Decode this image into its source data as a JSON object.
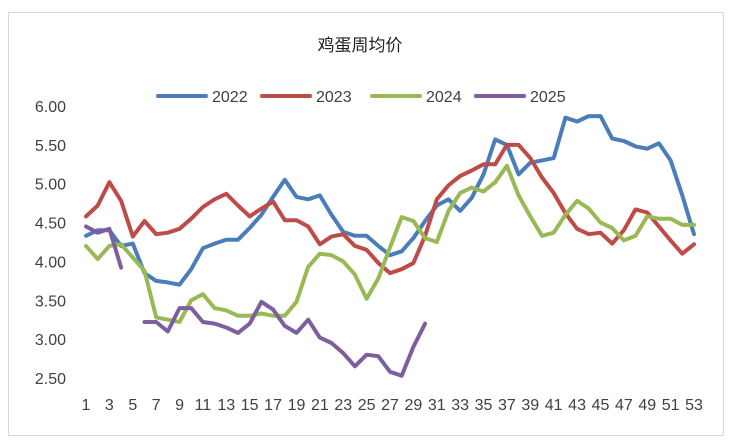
{
  "chart_data": {
    "type": "line",
    "title": "鸡蛋周均价",
    "xlabel": "",
    "ylabel": "",
    "ylim": [
      2.5,
      6.0
    ],
    "yticks": [
      "2.50",
      "3.00",
      "3.50",
      "4.00",
      "4.50",
      "5.00",
      "5.50",
      "6.00"
    ],
    "xlim": [
      1,
      53
    ],
    "xticks": [
      "1",
      "3",
      "5",
      "7",
      "9",
      "11",
      "13",
      "15",
      "17",
      "19",
      "21",
      "23",
      "25",
      "27",
      "29",
      "31",
      "33",
      "35",
      "37",
      "39",
      "41",
      "43",
      "45",
      "47",
      "49",
      "51",
      "53"
    ],
    "grid": false,
    "legend_position": "top",
    "series": [
      {
        "name": "2022",
        "color": "#4a7ebb",
        "x": [
          1,
          2,
          3,
          4,
          5,
          6,
          7,
          8,
          9,
          10,
          11,
          12,
          13,
          14,
          15,
          16,
          17,
          18,
          19,
          20,
          21,
          22,
          23,
          24,
          25,
          26,
          27,
          28,
          29,
          30,
          31,
          32,
          33,
          34,
          35,
          36,
          37,
          38,
          39,
          40,
          41,
          42,
          43,
          44,
          45,
          46,
          47,
          48,
          49,
          50,
          51,
          52,
          53
        ],
        "values": [
          4.33,
          4.4,
          4.4,
          4.2,
          4.23,
          3.85,
          3.75,
          3.73,
          3.7,
          3.9,
          4.17,
          4.23,
          4.28,
          4.28,
          4.43,
          4.6,
          4.83,
          5.05,
          4.83,
          4.8,
          4.85,
          4.6,
          4.38,
          4.33,
          4.33,
          4.2,
          4.08,
          4.13,
          4.3,
          4.52,
          4.72,
          4.8,
          4.65,
          4.82,
          5.12,
          5.57,
          5.5,
          5.12,
          5.27,
          5.3,
          5.33,
          5.85,
          5.8,
          5.87,
          5.87,
          5.58,
          5.55,
          5.48,
          5.45,
          5.52,
          5.3,
          4.85,
          4.35
        ]
      },
      {
        "name": "2023",
        "color": "#be4b48",
        "x": [
          1,
          2,
          3,
          4,
          5,
          6,
          7,
          8,
          9,
          10,
          11,
          12,
          13,
          14,
          15,
          16,
          17,
          18,
          19,
          20,
          21,
          22,
          23,
          24,
          25,
          26,
          27,
          28,
          29,
          30,
          31,
          32,
          33,
          34,
          35,
          36,
          37,
          38,
          39,
          40,
          41,
          42,
          43,
          44,
          45,
          46,
          47,
          48,
          49,
          50,
          51,
          52,
          53
        ],
        "values": [
          4.58,
          4.72,
          5.02,
          4.78,
          4.32,
          4.52,
          4.35,
          4.37,
          4.42,
          4.55,
          4.7,
          4.8,
          4.87,
          4.72,
          4.58,
          4.68,
          4.77,
          4.53,
          4.53,
          4.45,
          4.22,
          4.32,
          4.35,
          4.2,
          4.15,
          3.98,
          3.85,
          3.9,
          3.98,
          4.33,
          4.8,
          4.98,
          5.1,
          5.17,
          5.25,
          5.25,
          5.5,
          5.5,
          5.33,
          5.08,
          4.88,
          4.62,
          4.42,
          4.35,
          4.37,
          4.23,
          4.4,
          4.67,
          4.63,
          4.45,
          4.27,
          4.1,
          4.22
        ]
      },
      {
        "name": "2024",
        "color": "#98b954",
        "x": [
          1,
          2,
          3,
          4,
          5,
          6,
          7,
          8,
          9,
          10,
          11,
          12,
          13,
          14,
          15,
          16,
          17,
          18,
          19,
          20,
          21,
          22,
          23,
          24,
          25,
          26,
          27,
          28,
          29,
          30,
          31,
          32,
          33,
          34,
          35,
          36,
          37,
          38,
          39,
          40,
          41,
          42,
          43,
          44,
          45,
          46,
          47,
          48,
          49,
          50,
          51,
          52,
          53
        ],
        "values": [
          4.2,
          4.03,
          4.2,
          4.22,
          4.05,
          3.88,
          3.28,
          3.25,
          3.22,
          3.5,
          3.58,
          3.4,
          3.37,
          3.3,
          3.3,
          3.33,
          3.3,
          3.3,
          3.48,
          3.93,
          4.1,
          4.08,
          4.0,
          3.83,
          3.52,
          3.78,
          4.18,
          4.57,
          4.52,
          4.3,
          4.25,
          4.65,
          4.88,
          4.95,
          4.9,
          5.02,
          5.23,
          4.85,
          4.58,
          4.33,
          4.37,
          4.6,
          4.78,
          4.68,
          4.5,
          4.43,
          4.27,
          4.33,
          4.58,
          4.55,
          4.55,
          4.47,
          4.47
        ]
      },
      {
        "name": "2025",
        "color": "#7d5fa0",
        "segments": [
          {
            "x": [
              1,
              2,
              3,
              4
            ],
            "values": [
              4.45,
              4.37,
              4.42,
              3.92
            ]
          },
          {
            "x": [
              6,
              7,
              8,
              9,
              10,
              11,
              12,
              13,
              14,
              15,
              16,
              17,
              18,
              19,
              20,
              21,
              22,
              23,
              24,
              25,
              26,
              27,
              28,
              29,
              30
            ],
            "values": [
              3.22,
              3.22,
              3.1,
              3.4,
              3.4,
              3.22,
              3.2,
              3.15,
              3.08,
              3.2,
              3.48,
              3.38,
              3.17,
              3.08,
              3.25,
              3.02,
              2.95,
              2.82,
              2.65,
              2.8,
              2.78,
              2.58,
              2.53,
              2.9,
              3.2
            ]
          }
        ]
      }
    ]
  }
}
